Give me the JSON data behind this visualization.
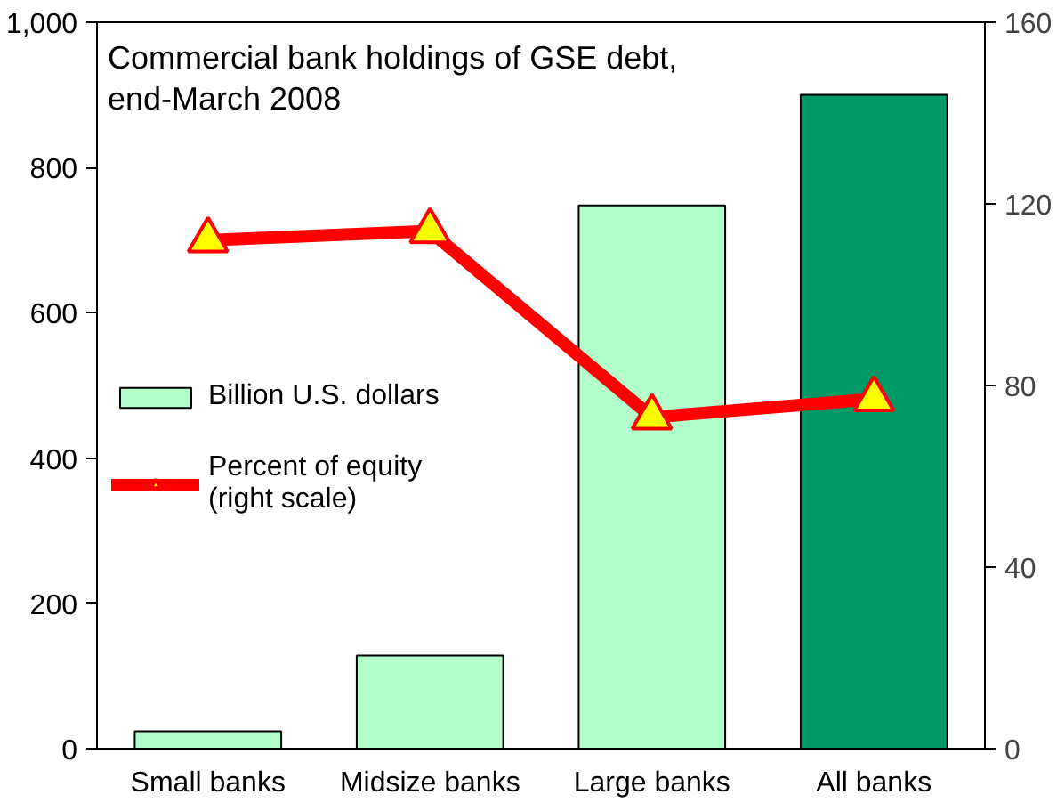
{
  "chart_data": {
    "type": "bar",
    "title": "Commercial bank holdings of GSE debt,\nend-March 2008",
    "categories": [
      "Small banks",
      "Midsize banks",
      "Large banks",
      "All banks"
    ],
    "series": [
      {
        "name": "Billion U.S. dollars",
        "color": "#b3ffcc",
        "colors": [
          "#b3ffcc",
          "#b3ffcc",
          "#b3ffcc",
          "#009966"
        ],
        "values": [
          24,
          128,
          748,
          900
        ]
      },
      {
        "name": "Percent of equity\n(right scale)",
        "type": "line",
        "axis": "y2",
        "color": "#ff0000",
        "marker": "triangle",
        "values": [
          112,
          114,
          73,
          77
        ]
      }
    ],
    "ylim": [
      0,
      1000
    ],
    "yticks": [
      0,
      200,
      400,
      600,
      800,
      {
        "value": 1000,
        "label": "1,000"
      }
    ],
    "y2lim": [
      0,
      160
    ],
    "y2ticks": [
      0,
      40,
      80,
      120,
      160
    ],
    "grid": false,
    "legend": "left"
  }
}
